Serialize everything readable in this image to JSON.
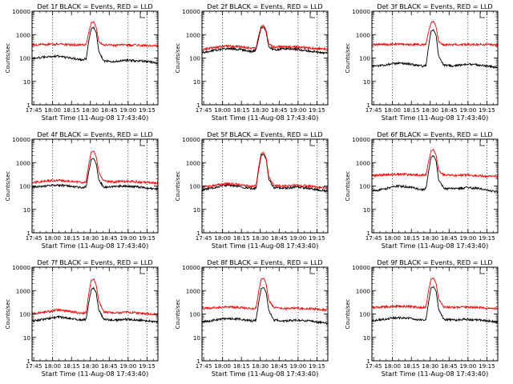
{
  "figure": {
    "colors": {
      "events": "#000000",
      "lld": "#ff0000",
      "axes": "#000000",
      "guides": "#000000"
    }
  },
  "chart_data": [
    {
      "type": "line",
      "detector": "Det 1f",
      "title": "Det 1f BLACK = Events, RED = LLD",
      "xlabel": "Start Time (11-Aug-08 17:43:40)",
      "ylabel": "Counts/sec",
      "x_tick_labels": [
        "17:45",
        "18:00",
        "18:15",
        "18:30",
        "18:45",
        "19:00",
        "19:15"
      ],
      "x_ticks_min": [
        1.33,
        16.33,
        31.33,
        46.33,
        61.33,
        76.33,
        91.33
      ],
      "y_scale": "log",
      "ylim": [
        1,
        10000
      ],
      "y_tick_labels": [
        "1",
        "10",
        "100",
        "1000",
        "10000"
      ],
      "xlim_min": [
        0,
        100
      ],
      "vertical_guides_min": [
        16.33,
        76.33,
        91.33
      ],
      "grid": false,
      "series": [
        {
          "name": "BLACK = Events",
          "x": [
            0,
            10,
            20,
            30,
            40,
            43,
            45,
            47,
            49,
            51,
            53,
            57,
            65,
            75,
            85,
            92,
            100
          ],
          "y": [
            95,
            110,
            120,
            100,
            85,
            90,
            500,
            1800,
            2000,
            1200,
            200,
            75,
            70,
            80,
            75,
            70,
            60
          ]
        },
        {
          "name": "RED = LLD",
          "x": [
            0,
            10,
            20,
            30,
            40,
            43,
            45,
            47,
            49,
            51,
            53,
            57,
            65,
            75,
            85,
            92,
            100
          ],
          "y": [
            360,
            380,
            390,
            370,
            360,
            380,
            1200,
            3200,
            3500,
            2000,
            500,
            360,
            350,
            360,
            350,
            340,
            330
          ]
        }
      ]
    },
    {
      "type": "line",
      "detector": "Det 2f",
      "title": "Det 2f BLACK = Events, RED = LLD",
      "xlabel": "Start Time (11-Aug-08 17:43:40)",
      "ylabel": "Counts/sec",
      "x_tick_labels": [
        "17:45",
        "18:00",
        "18:15",
        "18:30",
        "18:45",
        "19:00",
        "19:15"
      ],
      "x_ticks_min": [
        1.33,
        16.33,
        31.33,
        46.33,
        61.33,
        76.33,
        91.33
      ],
      "y_scale": "log",
      "ylim": [
        1,
        10000
      ],
      "y_tick_labels": [
        "1",
        "10",
        "100",
        "1000",
        "10000"
      ],
      "xlim_min": [
        0,
        100
      ],
      "vertical_guides_min": [
        16.33,
        76.33,
        91.33
      ],
      "grid": false,
      "series": [
        {
          "name": "BLACK = Events",
          "x": [
            0,
            10,
            20,
            30,
            40,
            43,
            45,
            47,
            49,
            51,
            53,
            57,
            65,
            75,
            85,
            92,
            100
          ],
          "y": [
            170,
            210,
            260,
            230,
            190,
            220,
            700,
            1900,
            2100,
            1300,
            300,
            220,
            250,
            240,
            200,
            180,
            160
          ]
        },
        {
          "name": "RED = LLD",
          "x": [
            0,
            10,
            20,
            30,
            40,
            43,
            45,
            47,
            49,
            51,
            53,
            57,
            65,
            75,
            85,
            92,
            100
          ],
          "y": [
            240,
            280,
            330,
            300,
            260,
            290,
            900,
            2200,
            2500,
            1500,
            400,
            290,
            310,
            300,
            270,
            250,
            240
          ]
        }
      ]
    },
    {
      "type": "line",
      "detector": "Det 3f",
      "title": "Det 3f BLACK = Events, RED = LLD",
      "xlabel": "Start Time (11-Aug-08 17:43:40)",
      "ylabel": "Counts/sec",
      "x_tick_labels": [
        "17:45",
        "18:00",
        "18:15",
        "18:30",
        "18:45",
        "19:00",
        "19:15"
      ],
      "x_ticks_min": [
        1.33,
        16.33,
        31.33,
        46.33,
        61.33,
        76.33,
        91.33
      ],
      "y_scale": "log",
      "ylim": [
        1,
        10000
      ],
      "y_tick_labels": [
        "1",
        "10",
        "100",
        "1000",
        "10000"
      ],
      "xlim_min": [
        0,
        100
      ],
      "vertical_guides_min": [
        16.33,
        76.33,
        91.33
      ],
      "grid": false,
      "series": [
        {
          "name": "BLACK = Events",
          "x": [
            0,
            10,
            20,
            30,
            40,
            43,
            45,
            47,
            49,
            51,
            53,
            57,
            65,
            75,
            85,
            92,
            100
          ],
          "y": [
            45,
            50,
            60,
            55,
            45,
            50,
            300,
            1400,
            1600,
            900,
            120,
            50,
            45,
            55,
            50,
            45,
            40
          ]
        },
        {
          "name": "RED = LLD",
          "x": [
            0,
            10,
            20,
            30,
            40,
            43,
            45,
            47,
            49,
            51,
            53,
            57,
            65,
            75,
            85,
            92,
            100
          ],
          "y": [
            370,
            380,
            390,
            380,
            370,
            390,
            1300,
            3300,
            3600,
            2100,
            500,
            380,
            370,
            380,
            380,
            370,
            360
          ]
        }
      ]
    },
    {
      "type": "line",
      "detector": "Det 4f",
      "title": "Det 4f BLACK = Events, RED = LLD",
      "xlabel": "Start Time (11-Aug-08 17:43:40)",
      "ylabel": "Counts/sec",
      "x_tick_labels": [
        "17:45",
        "18:00",
        "18:15",
        "18:30",
        "18:45",
        "19:00",
        "19:15"
      ],
      "x_ticks_min": [
        1.33,
        16.33,
        31.33,
        46.33,
        61.33,
        76.33,
        91.33
      ],
      "y_scale": "log",
      "ylim": [
        1,
        10000
      ],
      "y_tick_labels": [
        "1",
        "10",
        "100",
        "1000",
        "10000"
      ],
      "xlim_min": [
        0,
        100
      ],
      "vertical_guides_min": [
        16.33,
        76.33,
        91.33
      ],
      "grid": false,
      "series": [
        {
          "name": "BLACK = Events",
          "x": [
            0,
            10,
            20,
            30,
            40,
            43,
            45,
            47,
            49,
            51,
            53,
            57,
            65,
            75,
            85,
            92,
            100
          ],
          "y": [
            90,
            100,
            110,
            100,
            85,
            95,
            400,
            1300,
            1500,
            900,
            180,
            90,
            95,
            100,
            90,
            80,
            75
          ]
        },
        {
          "name": "RED = LLD",
          "x": [
            0,
            10,
            20,
            30,
            40,
            43,
            45,
            47,
            49,
            51,
            53,
            57,
            65,
            75,
            85,
            92,
            100
          ],
          "y": [
            140,
            160,
            175,
            160,
            140,
            160,
            800,
            2800,
            3200,
            1800,
            400,
            160,
            150,
            160,
            150,
            140,
            130
          ]
        }
      ]
    },
    {
      "type": "line",
      "detector": "Det 5f",
      "title": "Det 5f BLACK = Events, RED = LLD",
      "xlabel": "Start Time (11-Aug-08 17:43:40)",
      "ylabel": "Counts/sec",
      "x_tick_labels": [
        "17:45",
        "18:00",
        "18:15",
        "18:30",
        "18:45",
        "19:00",
        "19:15"
      ],
      "x_ticks_min": [
        1.33,
        16.33,
        31.33,
        46.33,
        61.33,
        76.33,
        91.33
      ],
      "y_scale": "log",
      "ylim": [
        1,
        10000
      ],
      "y_tick_labels": [
        "1",
        "10",
        "100",
        "1000",
        "10000"
      ],
      "xlim_min": [
        0,
        100
      ],
      "vertical_guides_min": [
        16.33,
        76.33,
        91.33
      ],
      "grid": false,
      "series": [
        {
          "name": "BLACK = Events",
          "x": [
            0,
            10,
            20,
            30,
            40,
            43,
            45,
            47,
            49,
            51,
            53,
            57,
            65,
            75,
            85,
            92,
            100
          ],
          "y": [
            70,
            85,
            110,
            95,
            75,
            85,
            500,
            2000,
            2300,
            1400,
            200,
            85,
            80,
            90,
            80,
            70,
            60
          ]
        },
        {
          "name": "RED = LLD",
          "x": [
            0,
            10,
            20,
            30,
            40,
            43,
            45,
            47,
            49,
            51,
            53,
            57,
            65,
            75,
            85,
            92,
            100
          ],
          "y": [
            90,
            105,
            130,
            115,
            95,
            105,
            600,
            2400,
            2700,
            1600,
            250,
            105,
            100,
            110,
            100,
            90,
            80
          ]
        }
      ]
    },
    {
      "type": "line",
      "detector": "Det 6f",
      "title": "Det 6f BLACK = Events, RED = LLD",
      "xlabel": "Start Time (11-Aug-08 17:43:40)",
      "ylabel": "Counts/sec",
      "x_tick_labels": [
        "17:45",
        "18:00",
        "18:15",
        "18:30",
        "18:45",
        "19:00",
        "19:15"
      ],
      "x_ticks_min": [
        1.33,
        16.33,
        31.33,
        46.33,
        61.33,
        76.33,
        91.33
      ],
      "y_scale": "log",
      "ylim": [
        1,
        10000
      ],
      "y_tick_labels": [
        "1",
        "10",
        "100",
        "1000",
        "10000"
      ],
      "xlim_min": [
        0,
        100
      ],
      "vertical_guides_min": [
        16.33,
        76.33,
        91.33
      ],
      "grid": false,
      "series": [
        {
          "name": "BLACK = Events",
          "x": [
            0,
            10,
            20,
            30,
            40,
            43,
            45,
            47,
            49,
            51,
            53,
            57,
            65,
            75,
            85,
            92,
            100
          ],
          "y": [
            60,
            75,
            100,
            90,
            70,
            80,
            400,
            1700,
            2000,
            1200,
            180,
            80,
            75,
            85,
            80,
            65,
            55
          ]
        },
        {
          "name": "RED = LLD",
          "x": [
            0,
            10,
            20,
            30,
            40,
            43,
            45,
            47,
            49,
            51,
            53,
            57,
            65,
            75,
            85,
            92,
            100
          ],
          "y": [
            280,
            300,
            320,
            310,
            290,
            310,
            1100,
            3200,
            3600,
            2000,
            450,
            300,
            280,
            290,
            280,
            260,
            250
          ]
        }
      ]
    },
    {
      "type": "line",
      "detector": "Det 7f",
      "title": "Det 7f BLACK = Events, RED = LLD",
      "xlabel": "Start Time (11-Aug-08 17:43:40)",
      "ylabel": "Counts/sec",
      "x_tick_labels": [
        "17:45",
        "18:00",
        "18:15",
        "18:30",
        "18:45",
        "19:00",
        "19:15"
      ],
      "x_ticks_min": [
        1.33,
        16.33,
        31.33,
        46.33,
        61.33,
        76.33,
        91.33
      ],
      "y_scale": "log",
      "ylim": [
        1,
        10000
      ],
      "y_tick_labels": [
        "1",
        "10",
        "100",
        "1000",
        "10000"
      ],
      "xlim_min": [
        0,
        100
      ],
      "vertical_guides_min": [
        16.33,
        76.33,
        91.33
      ],
      "grid": false,
      "series": [
        {
          "name": "BLACK = Events",
          "x": [
            0,
            10,
            20,
            30,
            40,
            43,
            45,
            47,
            49,
            51,
            53,
            57,
            65,
            75,
            85,
            92,
            100
          ],
          "y": [
            50,
            60,
            75,
            65,
            55,
            60,
            300,
            1100,
            1300,
            800,
            150,
            60,
            55,
            60,
            55,
            50,
            45
          ]
        },
        {
          "name": "RED = LLD",
          "x": [
            0,
            10,
            20,
            30,
            40,
            43,
            45,
            47,
            49,
            51,
            53,
            57,
            65,
            75,
            85,
            92,
            100
          ],
          "y": [
            100,
            120,
            150,
            130,
            105,
            120,
            700,
            2700,
            3100,
            1700,
            350,
            120,
            110,
            120,
            110,
            100,
            95
          ]
        }
      ]
    },
    {
      "type": "line",
      "detector": "Det 8f",
      "title": "Det 8f BLACK = Events, RED = LLD",
      "xlabel": "Start Time (11-Aug-08 17:43:40)",
      "ylabel": "Counts/sec",
      "x_tick_labels": [
        "17:45",
        "18:00",
        "18:15",
        "18:30",
        "18:45",
        "19:00",
        "19:15"
      ],
      "x_ticks_min": [
        1.33,
        16.33,
        31.33,
        46.33,
        61.33,
        76.33,
        91.33
      ],
      "y_scale": "log",
      "ylim": [
        1,
        10000
      ],
      "y_tick_labels": [
        "1",
        "10",
        "100",
        "1000",
        "10000"
      ],
      "xlim_min": [
        0,
        100
      ],
      "vertical_guides_min": [
        16.33,
        76.33,
        91.33
      ],
      "grid": false,
      "series": [
        {
          "name": "BLACK = Events",
          "x": [
            0,
            10,
            20,
            30,
            40,
            43,
            45,
            47,
            49,
            51,
            53,
            57,
            65,
            75,
            85,
            92,
            100
          ],
          "y": [
            45,
            55,
            65,
            60,
            50,
            55,
            300,
            1200,
            1400,
            850,
            150,
            55,
            50,
            55,
            50,
            45,
            40
          ]
        },
        {
          "name": "RED = LLD",
          "x": [
            0,
            10,
            20,
            30,
            40,
            43,
            45,
            47,
            49,
            51,
            53,
            57,
            65,
            75,
            85,
            92,
            100
          ],
          "y": [
            170,
            185,
            200,
            190,
            170,
            185,
            900,
            3000,
            3400,
            1900,
            400,
            185,
            170,
            180,
            170,
            160,
            150
          ]
        }
      ]
    },
    {
      "type": "line",
      "detector": "Det 9f",
      "title": "Det 9f BLACK = Events, RED = LLD",
      "xlabel": "Start Time (11-Aug-08 17:43:40)",
      "ylabel": "Counts/sec",
      "x_tick_labels": [
        "17:45",
        "18:00",
        "18:15",
        "18:30",
        "18:45",
        "19:00",
        "19:15"
      ],
      "x_ticks_min": [
        1.33,
        16.33,
        31.33,
        46.33,
        61.33,
        76.33,
        91.33
      ],
      "y_scale": "log",
      "ylim": [
        1,
        10000
      ],
      "y_tick_labels": [
        "1",
        "10",
        "100",
        "1000",
        "10000"
      ],
      "xlim_min": [
        0,
        100
      ],
      "vertical_guides_min": [
        16.33,
        76.33,
        91.33
      ],
      "grid": false,
      "series": [
        {
          "name": "BLACK = Events",
          "x": [
            0,
            10,
            20,
            30,
            40,
            43,
            45,
            47,
            49,
            51,
            53,
            57,
            65,
            75,
            85,
            92,
            100
          ],
          "y": [
            50,
            60,
            70,
            65,
            55,
            60,
            320,
            1300,
            1500,
            900,
            160,
            60,
            55,
            60,
            55,
            50,
            45
          ]
        },
        {
          "name": "RED = LLD",
          "x": [
            0,
            10,
            20,
            30,
            40,
            43,
            45,
            47,
            49,
            51,
            53,
            57,
            65,
            75,
            85,
            92,
            100
          ],
          "y": [
            190,
            200,
            215,
            205,
            190,
            205,
            1000,
            3100,
            3500,
            2000,
            420,
            200,
            190,
            200,
            190,
            180,
            170
          ]
        }
      ]
    }
  ]
}
